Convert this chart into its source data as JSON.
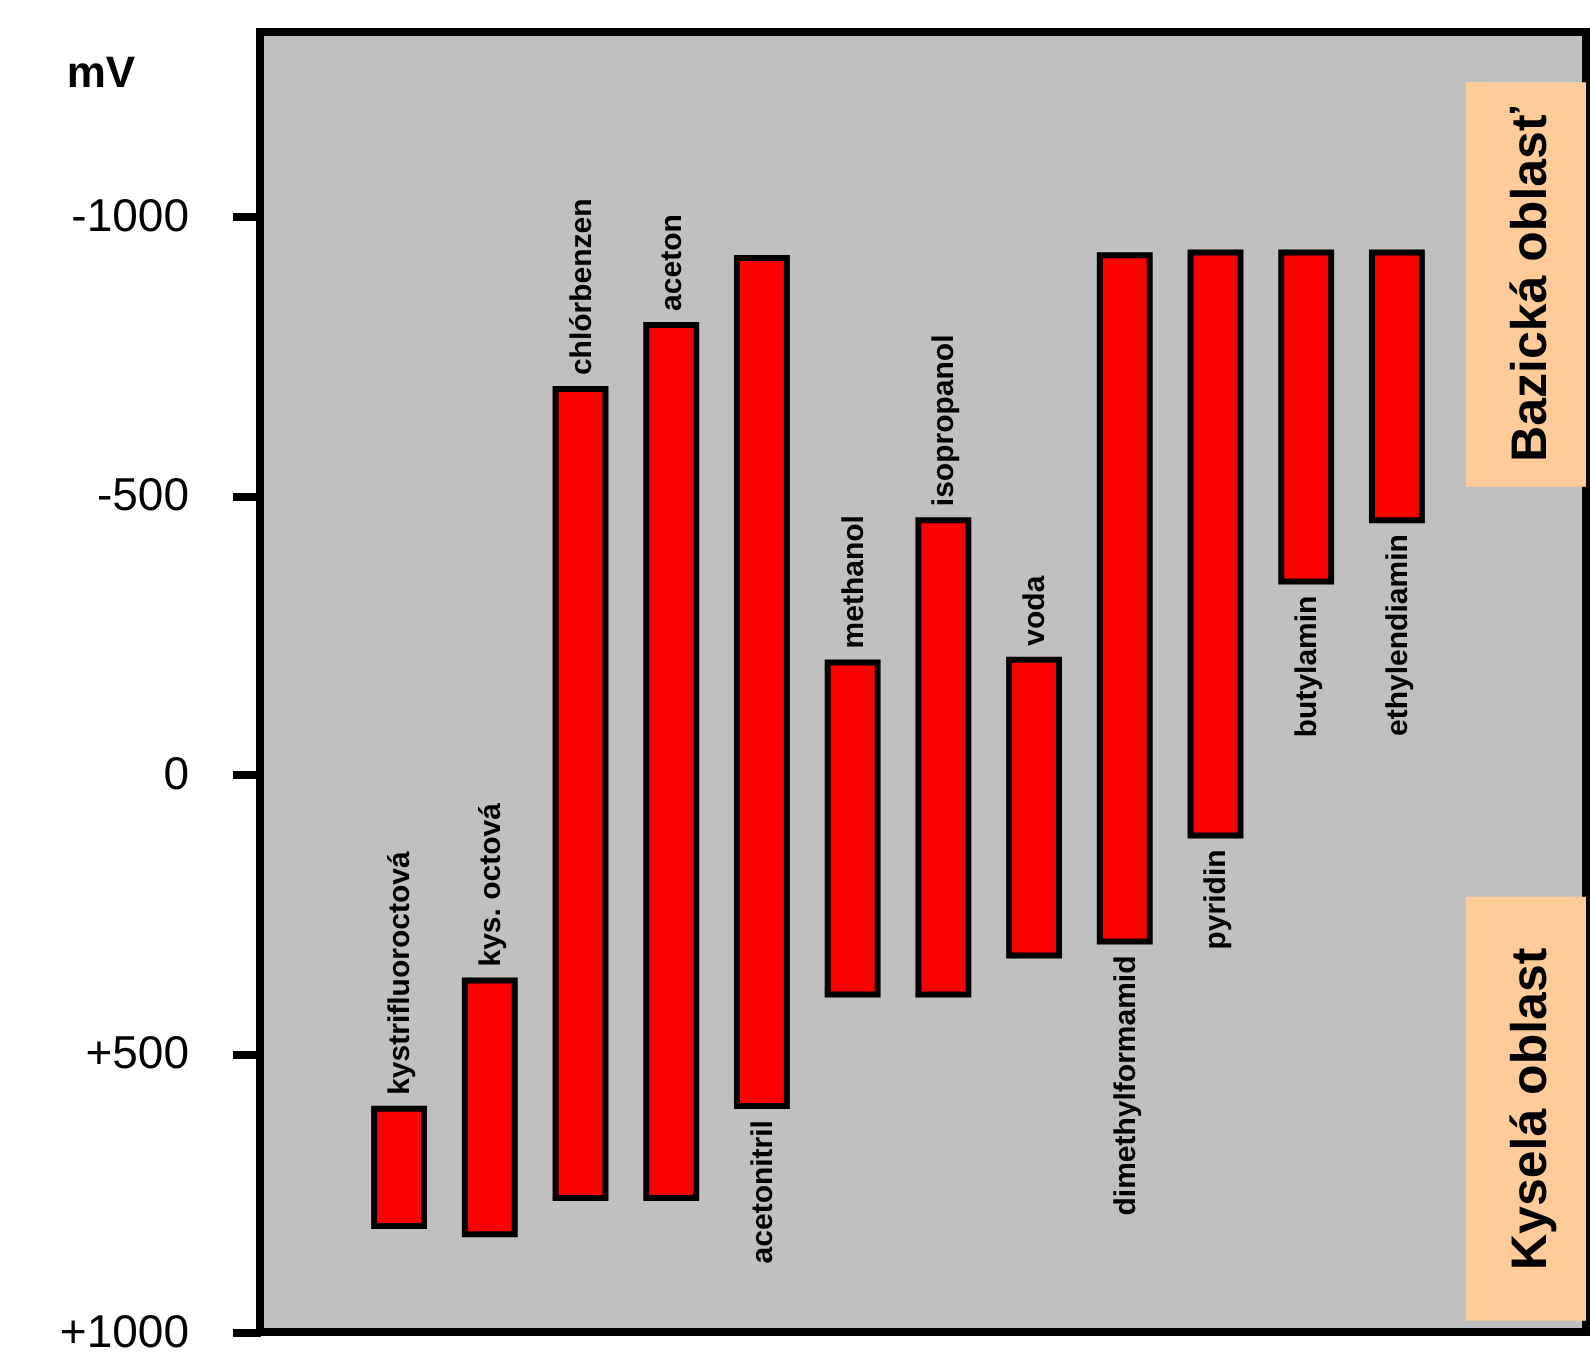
{
  "chart_data": {
    "type": "bar",
    "ylabel": "mV",
    "categories": [
      "kystrifluoroctová",
      "kys. octová",
      "chlórbenzen",
      "aceton",
      "acetonitril",
      "methanol",
      "isopropanol",
      "voda",
      "dimethylformamid",
      "pyridin",
      "butylamin",
      "ethylendiamin"
    ],
    "base": [
      600,
      370,
      -690,
      -805,
      -925,
      -200,
      -455,
      -205,
      -930,
      -935,
      -935,
      -935
    ],
    "values": [
      210,
      455,
      1450,
      1565,
      1520,
      595,
      850,
      530,
      1230,
      1045,
      590,
      480
    ],
    "color": "#ff0000",
    "ylim": [
      1000,
      -1330
    ],
    "yticks": [
      -1000,
      -500,
      0,
      {
        "value": 500,
        "label": "+500"
      },
      {
        "value": 1000,
        "label": "+1000"
      }
    ],
    "tick_labels": "y",
    "grid": false,
    "annotations": [
      "Bazická oblasť",
      "Kyselá oblast"
    ]
  }
}
